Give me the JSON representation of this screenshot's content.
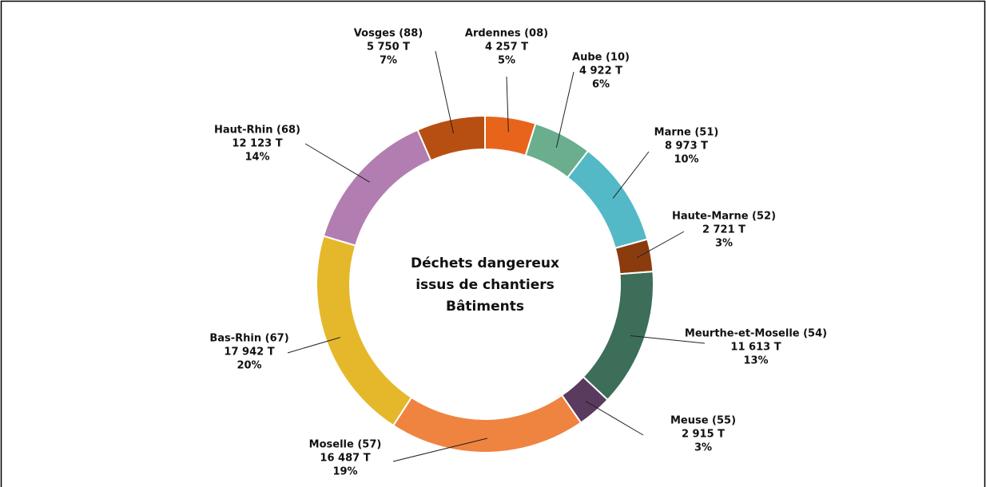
{
  "chart_data": {
    "type": "donut",
    "title": [
      "Déchets dangereux",
      "issus de chantiers",
      "Bâtiments"
    ],
    "categories": [
      "Ardennes (08)",
      "Aube (10)",
      "Marne (51)",
      "Haute-Marne (52)",
      "Meurthe-et-Moselle (54)",
      "Meuse (55)",
      "Moselle (57)",
      "Bas-Rhin (67)",
      "Haut-Rhin (68)",
      "Vosges (88)"
    ],
    "values": [
      4257,
      4922,
      8973,
      2721,
      11613,
      2915,
      16487,
      17942,
      12123,
      5750
    ],
    "value_labels": [
      "4 257 T",
      "4 922 T",
      "8 973 T",
      "2 721 T",
      "11 613 T",
      "2 915 T",
      "16 487 T",
      "17 942 T",
      "12 123 T",
      "5 750 T"
    ],
    "percent_labels": [
      "5%",
      "6%",
      "10%",
      "3%",
      "13%",
      "3%",
      "19%",
      "20%",
      "14%",
      "7%"
    ],
    "colors": [
      "#e8641b",
      "#6aae8e",
      "#54b9c6",
      "#8b3c0f",
      "#3c6e5a",
      "#5a3a5e",
      "#ef8440",
      "#e5b82c",
      "#b27db0",
      "#b84f12"
    ]
  }
}
